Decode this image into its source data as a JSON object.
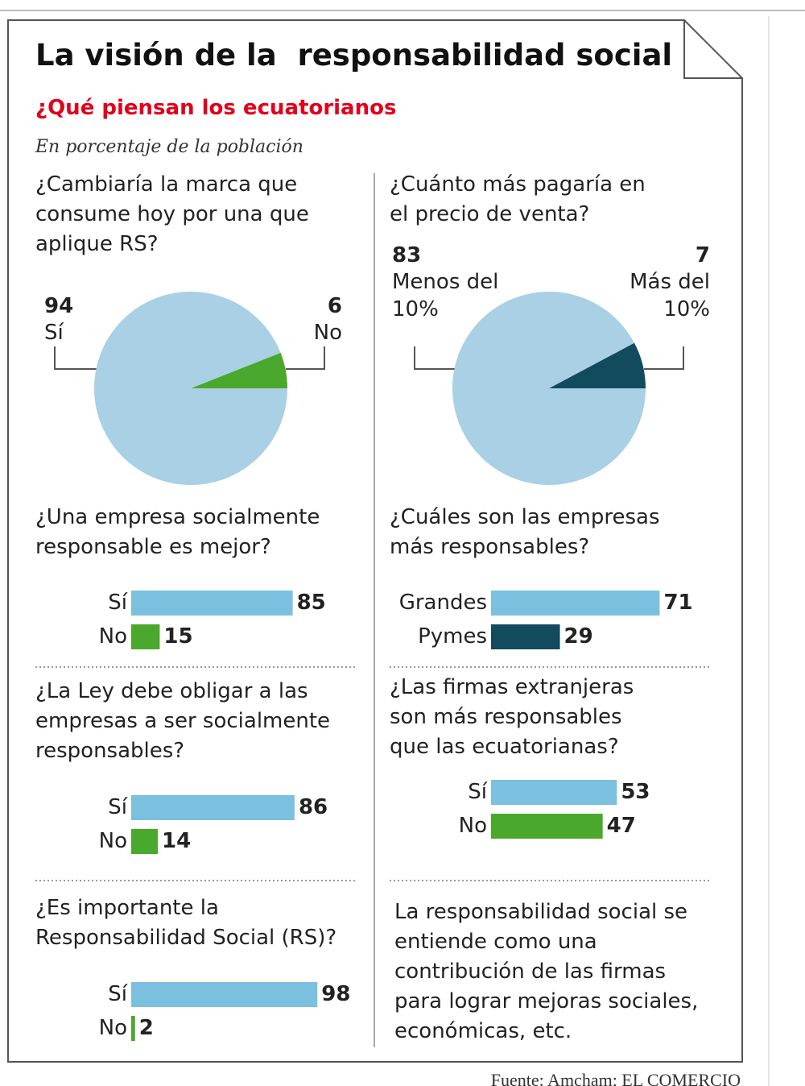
{
  "title": "La visión de la  responsabilidad social",
  "subtitle": "¿Qué piensan los ecuatorianos",
  "note": "En porcentaje de la población",
  "chart_data": [
    {
      "type": "pie",
      "title": "¿Cambiaría la marca que consume hoy por una que aplique RS?",
      "categories": [
        "Sí",
        "No"
      ],
      "values": [
        94,
        6
      ],
      "colors": [
        "#a9d0e4",
        "#4aa82c"
      ]
    },
    {
      "type": "pie",
      "title": "¿Cuánto más pagaría en el precio de venta?",
      "categories": [
        "Menos del 10%",
        "Más del 10%"
      ],
      "values": [
        83,
        7
      ],
      "colors": [
        "#a9d0e4",
        "#124a5e"
      ]
    },
    {
      "type": "bar",
      "title": "¿Una empresa socialmente responsable es mejor?",
      "categories": [
        "Sí",
        "No"
      ],
      "values": [
        85,
        15
      ],
      "colors": [
        "#7cc0e0",
        "#4aa82c"
      ]
    },
    {
      "type": "bar",
      "title": "¿Cuáles son las empresas más responsables?",
      "categories": [
        "Grandes",
        "Pymes"
      ],
      "values": [
        71,
        29
      ],
      "colors": [
        "#7cc0e0",
        "#124a5e"
      ]
    },
    {
      "type": "bar",
      "title": "¿La Ley debe obligar a las empresas a ser socialmente responsables?",
      "categories": [
        "Sí",
        "No"
      ],
      "values": [
        86,
        14
      ],
      "colors": [
        "#7cc0e0",
        "#4aa82c"
      ]
    },
    {
      "type": "bar",
      "title": "¿Las firmas extranjeras son más responsables que las ecuatorianas?",
      "categories": [
        "Sí",
        "No"
      ],
      "values": [
        53,
        47
      ],
      "colors": [
        "#7cc0e0",
        "#4aa82c"
      ]
    },
    {
      "type": "bar",
      "title": "¿Es importante la Responsabilidad Social (RS)?",
      "categories": [
        "Sí",
        "No"
      ],
      "values": [
        98,
        2
      ],
      "colors": [
        "#7cc0e0",
        "#4aa82c"
      ]
    }
  ],
  "definition": "La responsabilidad social se entiende como una contribución de las firmas para lograr mejoras sociales, económicas, etc.",
  "source": "Fuente: Amcham; EL COMERCIO"
}
